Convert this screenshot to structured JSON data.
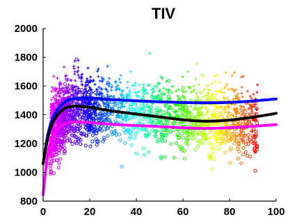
{
  "chart_data": {
    "type": "scatter",
    "title": "TIV",
    "xlabel": "",
    "ylabel": "",
    "xlim": [
      0,
      100
    ],
    "ylim": [
      800,
      2000
    ],
    "x_ticks": [
      0,
      20,
      40,
      60,
      80,
      100
    ],
    "y_ticks": [
      800,
      1000,
      1200,
      1400,
      1600,
      1800,
      2000
    ],
    "grid": false,
    "legend": "none",
    "colormap": "hsv by age (magenta → purple → blue → cyan → green → yellow → orange → red)",
    "marker_shapes": [
      "plus",
      "circle"
    ],
    "curves": [
      {
        "color": "#0000ff",
        "x": [
          0,
          2,
          4,
          6,
          8,
          10,
          12,
          15,
          18,
          22,
          26,
          30,
          40,
          50,
          60,
          70,
          80,
          90,
          100
        ],
        "y": [
          1060,
          1260,
          1370,
          1430,
          1470,
          1495,
          1508,
          1515,
          1518,
          1515,
          1510,
          1505,
          1497,
          1490,
          1485,
          1483,
          1486,
          1496,
          1510
        ]
      },
      {
        "color": "#000000",
        "x": [
          0,
          2,
          4,
          6,
          8,
          10,
          12,
          15,
          18,
          22,
          26,
          30,
          40,
          50,
          60,
          70,
          80,
          90,
          100
        ],
        "y": [
          1060,
          1240,
          1340,
          1395,
          1430,
          1450,
          1458,
          1460,
          1456,
          1447,
          1436,
          1425,
          1405,
          1385,
          1365,
          1355,
          1363,
          1383,
          1410
        ]
      },
      {
        "color": "#ff00ff",
        "x": [
          0,
          2,
          4,
          6,
          8,
          10,
          12,
          15,
          18,
          22,
          26,
          30,
          40,
          50,
          60,
          70,
          80,
          90,
          100
        ],
        "y": [
          845,
          1130,
          1240,
          1295,
          1325,
          1340,
          1348,
          1350,
          1348,
          1343,
          1338,
          1333,
          1325,
          1318,
          1310,
          1305,
          1310,
          1320,
          1332
        ]
      }
    ],
    "scatter": {
      "count": 2200,
      "x_range": [
        0,
        92
      ],
      "y_range": [
        900,
        1850
      ]
    }
  }
}
